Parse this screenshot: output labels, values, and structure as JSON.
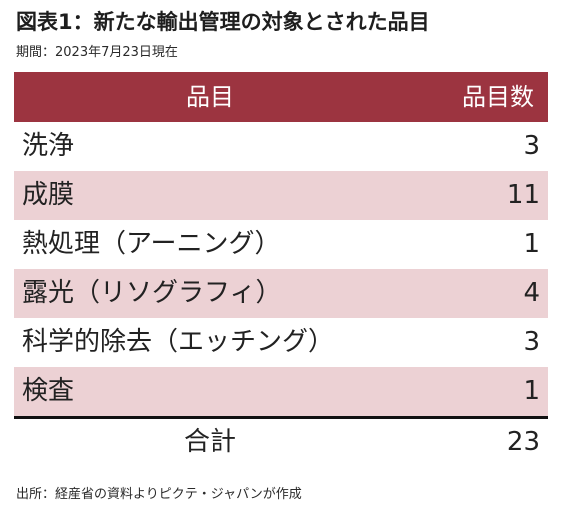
{
  "title": "図表1：新たな輸出管理の対象とされた品目",
  "period": "期間：2023年7月23日現在",
  "table": {
    "headers": {
      "item": "品目",
      "count": "品目数"
    },
    "rows": [
      {
        "name": "洗浄",
        "count": "3"
      },
      {
        "name": "成膜",
        "count": "11"
      },
      {
        "name": "熱処理（アーニング）",
        "count": "1"
      },
      {
        "name": "露光（リソグラフィ）",
        "count": "4"
      },
      {
        "name": "科学的除去（エッチング）",
        "count": "3"
      },
      {
        "name": "検査",
        "count": "1"
      }
    ],
    "total": {
      "label": "合計",
      "count": "23"
    }
  },
  "source": "出所：経産省の資料よりピクテ・ジャパンが作成",
  "colors": {
    "header_bg": "#9c3440",
    "alt_row_bg": "#ecd1d4"
  }
}
